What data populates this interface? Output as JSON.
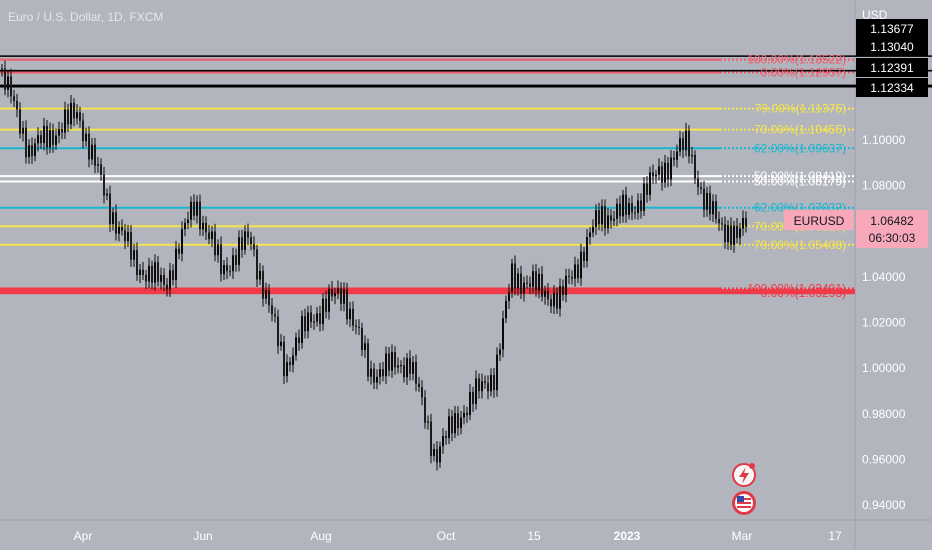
{
  "header": {
    "title": "Euro / U.S. Dollar, 1D, FXCM"
  },
  "price_axis": {
    "currency": "USD",
    "ticks": [
      "1.10000",
      "1.08000",
      "1.04000",
      "1.02000",
      "1.00000",
      "0.98000",
      "0.96000",
      "0.94000"
    ],
    "badges": [
      {
        "label": "1.13677",
        "color": "#000000"
      },
      {
        "label": "1.13040",
        "color": "#000000"
      },
      {
        "label": "1.12391",
        "color": "#000000"
      },
      {
        "label": "1.12334",
        "color": "#000000"
      }
    ]
  },
  "ticker": {
    "symbol": "EURUSD",
    "price": "1.06482",
    "countdown": "06:30:03",
    "color": "#f7a9b9"
  },
  "time_axis": {
    "ticks": [
      "Apr",
      "Jun",
      "Aug",
      "Oct",
      "15",
      "2023",
      "Mar",
      "17"
    ]
  },
  "colors": {
    "background": "#b2b5be",
    "candle": "#0a0a0a",
    "black_line": "#000000"
  },
  "icons": [
    "flash-alert-icon",
    "us-flag-icon"
  ],
  "chart_data": {
    "type": "candlestick",
    "title": "Euro / U.S. Dollar, 1D, FXCM",
    "symbol": "EURUSD",
    "y_unit": "USD",
    "ylim": [
      0.9375,
      1.148
    ],
    "x_ticks": [
      "Apr",
      "Jun",
      "Aug",
      "Oct",
      "15",
      "2023",
      "Mar",
      "17"
    ],
    "price_path": [
      {
        "t": "start",
        "close": 1.128
      },
      {
        "t": "Apr",
        "close": 1.095
      },
      {
        "t": "Apr",
        "close": 1.112
      },
      {
        "t": "May",
        "close": 1.072
      },
      {
        "t": "May",
        "close": 1.046
      },
      {
        "t": "May",
        "close": 1.036
      },
      {
        "t": "Jun",
        "close": 1.073
      },
      {
        "t": "Jun",
        "close": 1.043
      },
      {
        "t": "Jul",
        "close": 1.057
      },
      {
        "t": "Jul",
        "close": 1.001
      },
      {
        "t": "Aug",
        "close": 1.022
      },
      {
        "t": "Aug",
        "close": 1.034
      },
      {
        "t": "Sep",
        "close": 0.998
      },
      {
        "t": "Sep",
        "close": 1.003
      },
      {
        "t": "Oct",
        "close": 0.962
      },
      {
        "t": "Oct",
        "close": 0.983
      },
      {
        "t": "Nov",
        "close": 0.998
      },
      {
        "t": "Nov",
        "close": 1.041
      },
      {
        "t": "15",
        "close": 1.03
      },
      {
        "t": "Dec",
        "close": 1.067
      },
      {
        "t": "2023",
        "close": 1.069
      },
      {
        "t": "Jan",
        "close": 1.086
      },
      {
        "t": "Feb",
        "close": 1.099
      },
      {
        "t": "Feb",
        "close": 1.071
      },
      {
        "t": "Mar",
        "close": 1.056
      },
      {
        "t": "Mar",
        "close": 1.065
      }
    ],
    "horizontal_lines": [
      {
        "price": 1.13677,
        "color": "#000000"
      },
      {
        "price": 1.1304,
        "color": "#000000"
      },
      {
        "price": 1.12391,
        "color": "#000000"
      },
      {
        "price": 1.12334,
        "color": "#000000"
      }
    ],
    "fib_levels": [
      {
        "label": "100.00%(1.13522)",
        "price": 1.13522,
        "color": "#f05a6a"
      },
      {
        "label": "0.00%(1.12957)",
        "price": 1.12957,
        "color": "#f05a6a"
      },
      {
        "label": "79.00%(1.11375)",
        "price": 1.11375,
        "color": "#f6e54c"
      },
      {
        "label": "70.00%(1.10455)",
        "price": 1.10455,
        "color": "#f6e54c"
      },
      {
        "label": "62.00%(1.09637)",
        "price": 1.09637,
        "color": "#19b7d0"
      },
      {
        "label": "50.00%(1.08419)",
        "price": 1.08419,
        "color": "#ffffff"
      },
      {
        "label": "50.00%(1.08179)",
        "price": 1.08179,
        "color": "#ffffff"
      },
      {
        "label": "62.00%(1.07032)",
        "price": 1.07032,
        "color": "#19b7d0"
      },
      {
        "label": "70.00%(1.06219)",
        "price": 1.06219,
        "color": "#f6e54c"
      },
      {
        "label": "79.00%(1.05408)",
        "price": 1.05408,
        "color": "#f6e54c"
      },
      {
        "label": "100.00%(1.03491)",
        "price": 1.03491,
        "color": "#f03a48"
      },
      {
        "label": "0.00%(1.03293)",
        "price": 1.03293,
        "color": "#f03a48"
      }
    ]
  }
}
